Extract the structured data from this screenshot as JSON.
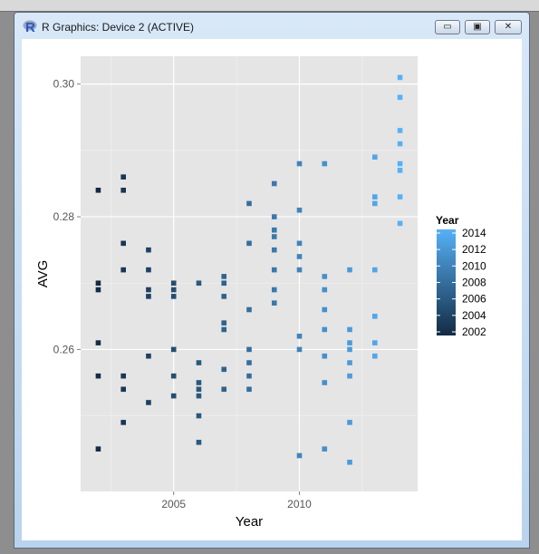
{
  "window": {
    "title": "R Graphics: Device 2 (ACTIVE)",
    "logo_letter": "R",
    "buttons": {
      "minimize": "▭",
      "restore": "▣",
      "close": "✕"
    }
  },
  "chart_data": {
    "type": "scatter",
    "xlabel": "Year",
    "ylabel": "AVG",
    "xlim": [
      2001.3,
      2014.7
    ],
    "ylim": [
      0.2386,
      0.3042
    ],
    "x_ticks": [
      2005,
      2010
    ],
    "x_tick_labels": [
      "2005",
      "2010"
    ],
    "y_ticks": [
      0.26,
      0.28,
      0.3
    ],
    "y_tick_labels": [
      "0.26",
      "0.28",
      "0.30"
    ],
    "grid": true,
    "background": "#e5e5e5",
    "legend": {
      "title": "Year",
      "position": "right",
      "labels": [
        "2014",
        "2012",
        "2010",
        "2008",
        "2006",
        "2004",
        "2002"
      ],
      "low_color": "#132b43",
      "high_color": "#56b1f7"
    },
    "points": [
      {
        "x": 2002,
        "y": 0.284
      },
      {
        "x": 2002,
        "y": 0.27
      },
      {
        "x": 2002,
        "y": 0.269
      },
      {
        "x": 2002,
        "y": 0.261
      },
      {
        "x": 2002,
        "y": 0.256
      },
      {
        "x": 2002,
        "y": 0.245
      },
      {
        "x": 2003,
        "y": 0.286
      },
      {
        "x": 2003,
        "y": 0.284
      },
      {
        "x": 2003,
        "y": 0.276
      },
      {
        "x": 2003,
        "y": 0.272
      },
      {
        "x": 2003,
        "y": 0.256
      },
      {
        "x": 2003,
        "y": 0.254
      },
      {
        "x": 2003,
        "y": 0.249
      },
      {
        "x": 2004,
        "y": 0.275
      },
      {
        "x": 2004,
        "y": 0.272
      },
      {
        "x": 2004,
        "y": 0.269
      },
      {
        "x": 2004,
        "y": 0.268
      },
      {
        "x": 2004,
        "y": 0.259
      },
      {
        "x": 2004,
        "y": 0.252
      },
      {
        "x": 2005,
        "y": 0.27
      },
      {
        "x": 2005,
        "y": 0.269
      },
      {
        "x": 2005,
        "y": 0.268
      },
      {
        "x": 2005,
        "y": 0.26
      },
      {
        "x": 2005,
        "y": 0.256
      },
      {
        "x": 2005,
        "y": 0.253
      },
      {
        "x": 2006,
        "y": 0.27
      },
      {
        "x": 2006,
        "y": 0.258
      },
      {
        "x": 2006,
        "y": 0.255
      },
      {
        "x": 2006,
        "y": 0.254
      },
      {
        "x": 2006,
        "y": 0.253
      },
      {
        "x": 2006,
        "y": 0.25
      },
      {
        "x": 2006,
        "y": 0.246
      },
      {
        "x": 2007,
        "y": 0.271
      },
      {
        "x": 2007,
        "y": 0.27
      },
      {
        "x": 2007,
        "y": 0.268
      },
      {
        "x": 2007,
        "y": 0.264
      },
      {
        "x": 2007,
        "y": 0.263
      },
      {
        "x": 2007,
        "y": 0.257
      },
      {
        "x": 2007,
        "y": 0.254
      },
      {
        "x": 2008,
        "y": 0.282
      },
      {
        "x": 2008,
        "y": 0.276
      },
      {
        "x": 2008,
        "y": 0.266
      },
      {
        "x": 2008,
        "y": 0.26
      },
      {
        "x": 2008,
        "y": 0.258
      },
      {
        "x": 2008,
        "y": 0.256
      },
      {
        "x": 2008,
        "y": 0.254
      },
      {
        "x": 2009,
        "y": 0.285
      },
      {
        "x": 2009,
        "y": 0.28
      },
      {
        "x": 2009,
        "y": 0.278
      },
      {
        "x": 2009,
        "y": 0.277
      },
      {
        "x": 2009,
        "y": 0.275
      },
      {
        "x": 2009,
        "y": 0.272
      },
      {
        "x": 2009,
        "y": 0.269
      },
      {
        "x": 2009,
        "y": 0.267
      },
      {
        "x": 2010,
        "y": 0.288
      },
      {
        "x": 2010,
        "y": 0.281
      },
      {
        "x": 2010,
        "y": 0.276
      },
      {
        "x": 2010,
        "y": 0.274
      },
      {
        "x": 2010,
        "y": 0.272
      },
      {
        "x": 2010,
        "y": 0.262
      },
      {
        "x": 2010,
        "y": 0.26
      },
      {
        "x": 2010,
        "y": 0.244
      },
      {
        "x": 2011,
        "y": 0.288
      },
      {
        "x": 2011,
        "y": 0.271
      },
      {
        "x": 2011,
        "y": 0.269
      },
      {
        "x": 2011,
        "y": 0.266
      },
      {
        "x": 2011,
        "y": 0.263
      },
      {
        "x": 2011,
        "y": 0.259
      },
      {
        "x": 2011,
        "y": 0.255
      },
      {
        "x": 2011,
        "y": 0.245
      },
      {
        "x": 2012,
        "y": 0.272
      },
      {
        "x": 2012,
        "y": 0.263
      },
      {
        "x": 2012,
        "y": 0.261
      },
      {
        "x": 2012,
        "y": 0.26
      },
      {
        "x": 2012,
        "y": 0.258
      },
      {
        "x": 2012,
        "y": 0.256
      },
      {
        "x": 2012,
        "y": 0.249
      },
      {
        "x": 2012,
        "y": 0.243
      },
      {
        "x": 2013,
        "y": 0.289
      },
      {
        "x": 2013,
        "y": 0.283
      },
      {
        "x": 2013,
        "y": 0.282
      },
      {
        "x": 2013,
        "y": 0.272
      },
      {
        "x": 2013,
        "y": 0.265
      },
      {
        "x": 2013,
        "y": 0.261
      },
      {
        "x": 2013,
        "y": 0.259
      },
      {
        "x": 2014,
        "y": 0.301
      },
      {
        "x": 2014,
        "y": 0.298
      },
      {
        "x": 2014,
        "y": 0.293
      },
      {
        "x": 2014,
        "y": 0.291
      },
      {
        "x": 2014,
        "y": 0.288
      },
      {
        "x": 2014,
        "y": 0.287
      },
      {
        "x": 2014,
        "y": 0.283
      },
      {
        "x": 2014,
        "y": 0.279
      }
    ]
  }
}
